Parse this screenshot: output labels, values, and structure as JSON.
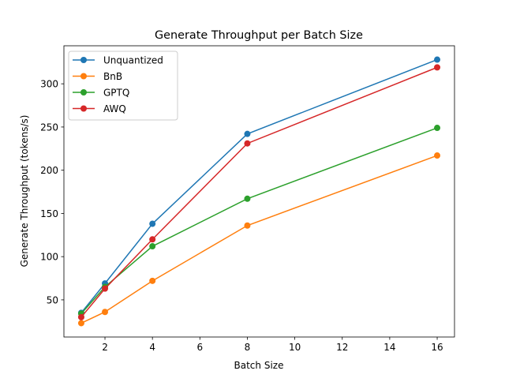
{
  "chart_data": {
    "type": "line",
    "title": "Generate Throughput per Batch Size",
    "xlabel": "Batch Size",
    "ylabel": "Generate Throughput (tokens/s)",
    "x": [
      1,
      2,
      4,
      8,
      16
    ],
    "xlim": [
      0.27,
      16.73
    ],
    "ylim": [
      7,
      344
    ],
    "xticks": [
      2,
      4,
      6,
      8,
      10,
      12,
      14,
      16
    ],
    "yticks": [
      50,
      100,
      150,
      200,
      250,
      300
    ],
    "grid": false,
    "legend_position": "upper-left",
    "series": [
      {
        "name": "Unquantized",
        "color": "#1f77b4",
        "values": [
          35,
          69,
          138,
          242,
          328
        ]
      },
      {
        "name": "BnB",
        "color": "#ff7f0e",
        "values": [
          23,
          36,
          72,
          136,
          217
        ]
      },
      {
        "name": "GPTQ",
        "color": "#2ca02c",
        "values": [
          34,
          65,
          112,
          167,
          249
        ]
      },
      {
        "name": "AWQ",
        "color": "#d62728",
        "values": [
          30,
          63,
          120,
          231,
          319
        ]
      }
    ]
  }
}
